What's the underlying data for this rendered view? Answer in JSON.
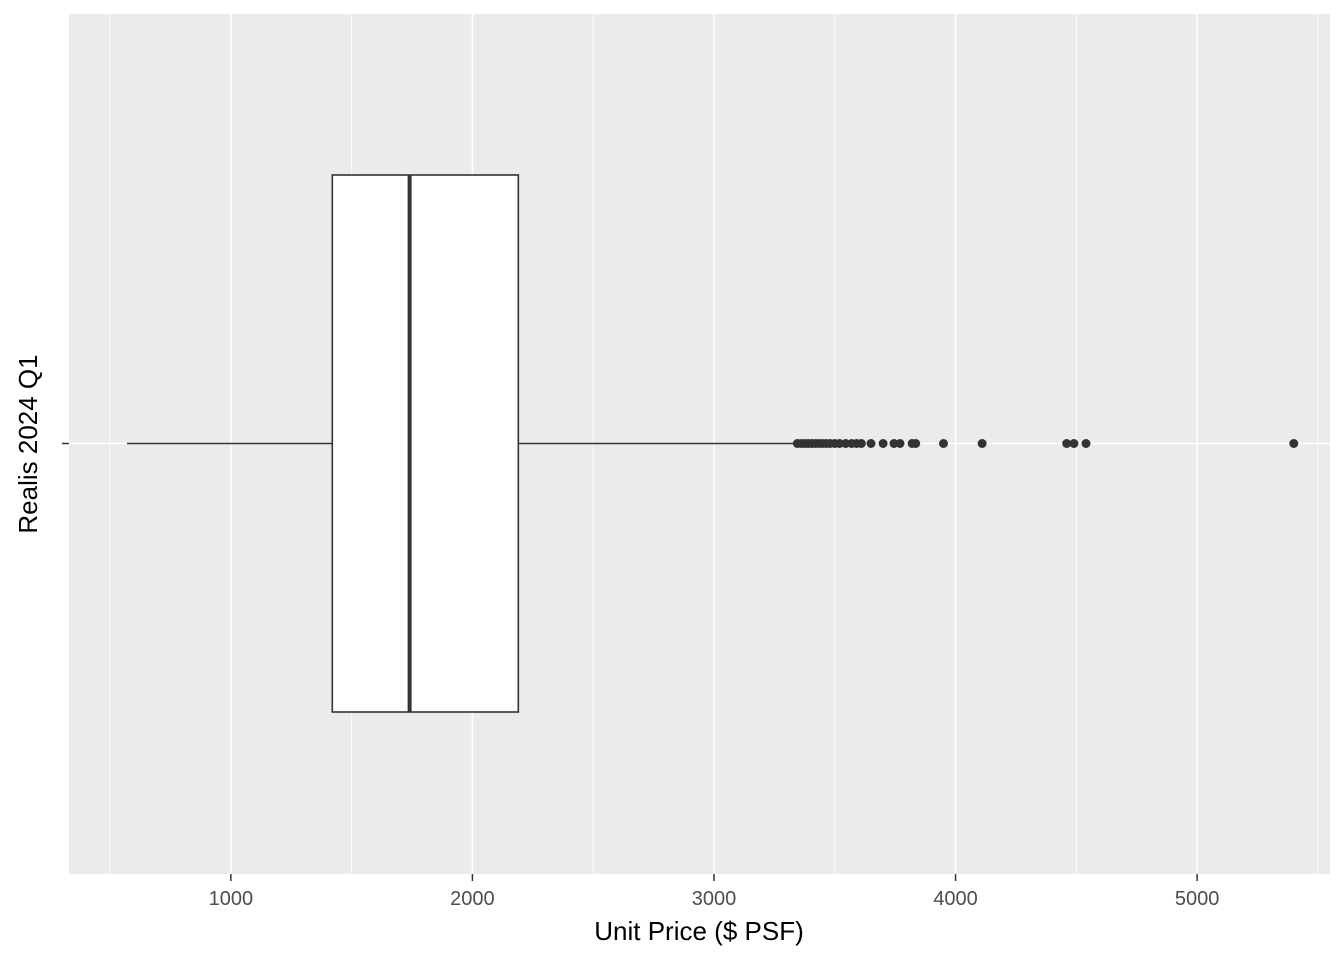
{
  "chart_data": {
    "type": "boxplot",
    "orientation": "horizontal",
    "title": "",
    "xlabel": "Unit Price ($ PSF)",
    "ylabel": "Realis 2024 Q1",
    "xlim": [
      330,
      5550
    ],
    "x_ticks": [
      1000,
      2000,
      3000,
      4000,
      5000
    ],
    "grid": true,
    "categories": [
      "Realis 2024 Q1"
    ],
    "box": {
      "whisker_low": 570,
      "q1": 1420,
      "median": 1740,
      "q3": 2190,
      "whisker_high": 3340
    },
    "outliers": [
      3345,
      3360,
      3375,
      3390,
      3405,
      3420,
      3435,
      3450,
      3465,
      3480,
      3500,
      3520,
      3545,
      3570,
      3590,
      3610,
      3650,
      3700,
      3745,
      3770,
      3820,
      3835,
      3950,
      4110,
      4460,
      4490,
      4540,
      5400
    ],
    "colors": {
      "panel_background": "#ebebeb",
      "grid_major": "#ffffff",
      "box_fill": "#ffffff",
      "box_stroke": "#333333",
      "outlier": "#333333"
    }
  }
}
